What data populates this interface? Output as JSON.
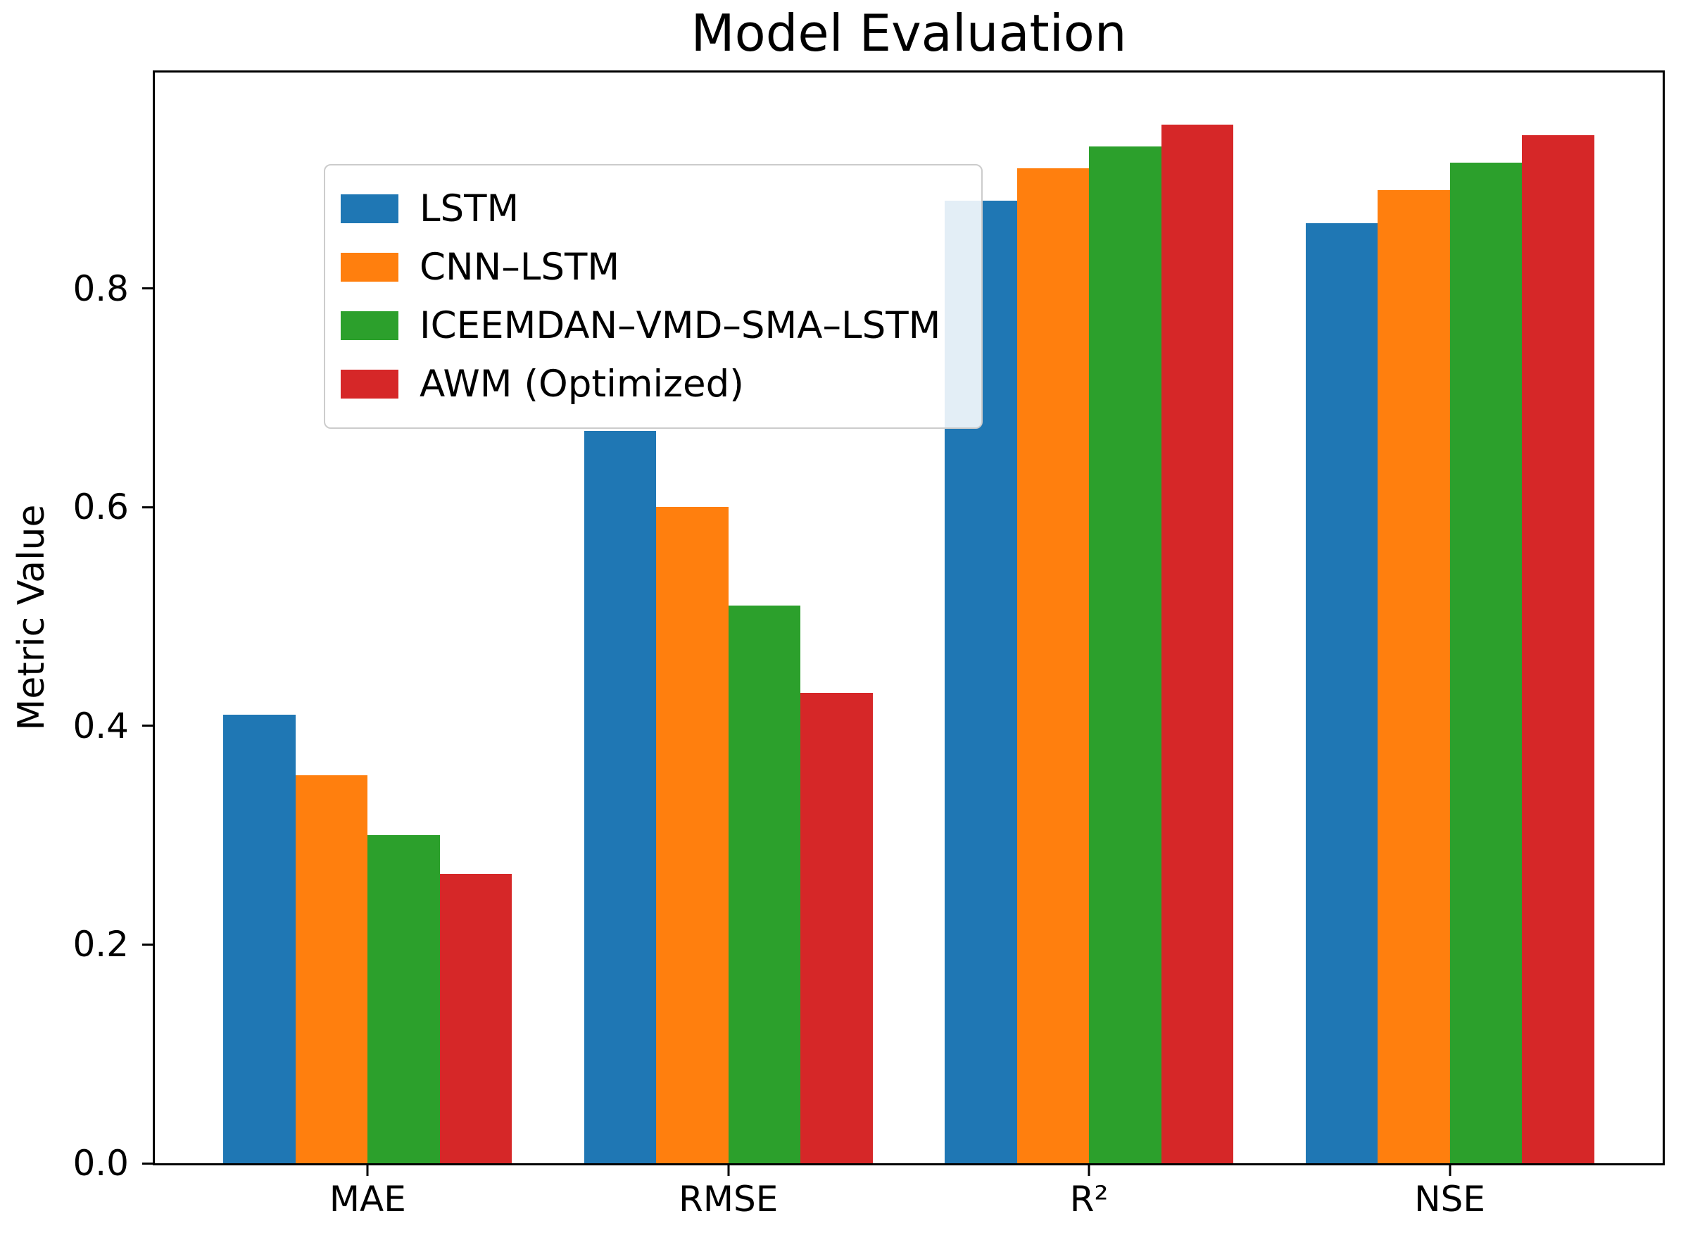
{
  "chart_data": {
    "type": "bar",
    "title": "Model Evaluation",
    "xlabel": "",
    "ylabel": "Metric Value",
    "categories": [
      "MAE",
      "RMSE",
      "R²",
      "NSE"
    ],
    "series": [
      {
        "name": "LSTM",
        "color": "#1f77b4",
        "values": [
          0.41,
          0.67,
          0.88,
          0.86
        ]
      },
      {
        "name": "CNN–LSTM",
        "color": "#ff7f0e",
        "values": [
          0.355,
          0.6,
          0.91,
          0.89
        ]
      },
      {
        "name": "ICEEMDAN–VMD–SMA–LSTM",
        "color": "#2ca02c",
        "values": [
          0.3,
          0.51,
          0.93,
          0.915
        ]
      },
      {
        "name": "AWM (Optimized)",
        "color": "#d62728",
        "values": [
          0.265,
          0.43,
          0.95,
          0.94
        ]
      }
    ],
    "ylim": [
      0.0,
      0.9975
    ],
    "yticks": [
      0.0,
      0.2,
      0.4,
      0.6,
      0.8
    ],
    "ytick_labels": [
      "0.0",
      "0.2",
      "0.4",
      "0.6",
      "0.8"
    ],
    "legend_position": "upper left",
    "grid": false,
    "colors": {
      "background": "#ffffff",
      "spine": "#000000",
      "legend_border": "#cccccc"
    }
  }
}
